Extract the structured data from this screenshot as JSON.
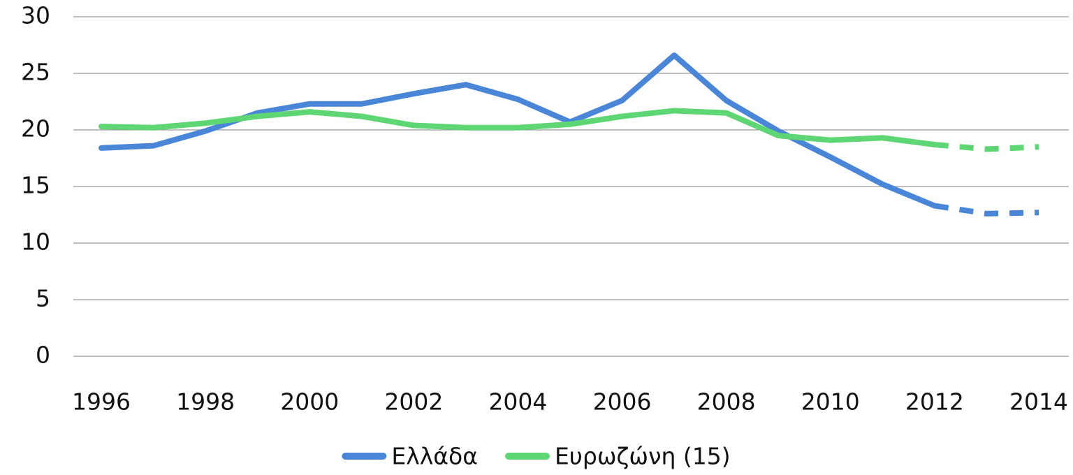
{
  "chart_data": {
    "type": "line",
    "x": [
      1996,
      1997,
      1998,
      1999,
      2000,
      2001,
      2002,
      2003,
      2004,
      2005,
      2006,
      2007,
      2008,
      2009,
      2010,
      2011,
      2012,
      2013,
      2014
    ],
    "series": [
      {
        "name": "Ελλάδα",
        "color": "#4a86d8",
        "values": [
          18.4,
          18.6,
          19.9,
          21.5,
          22.3,
          22.3,
          23.2,
          24.0,
          22.7,
          20.7,
          22.6,
          26.6,
          22.6,
          19.9,
          17.6,
          15.2,
          13.3,
          12.6,
          12.7
        ]
      },
      {
        "name": "Ευρωζώνη (15)",
        "color": "#5ed673",
        "values": [
          20.3,
          20.2,
          20.6,
          21.2,
          21.6,
          21.2,
          20.4,
          20.2,
          20.2,
          20.5,
          21.2,
          21.7,
          21.5,
          19.5,
          19.1,
          19.3,
          18.7,
          18.3,
          18.5
        ]
      }
    ],
    "dashed_from": 2012,
    "xlim": [
      1996,
      2014
    ],
    "xticks": [
      1996,
      1998,
      2000,
      2002,
      2004,
      2006,
      2008,
      2010,
      2012,
      2014
    ],
    "ylim": [
      0,
      30
    ],
    "yticks": [
      0,
      5,
      10,
      15,
      20,
      25,
      30
    ],
    "grid": true,
    "legend": "bottom"
  }
}
